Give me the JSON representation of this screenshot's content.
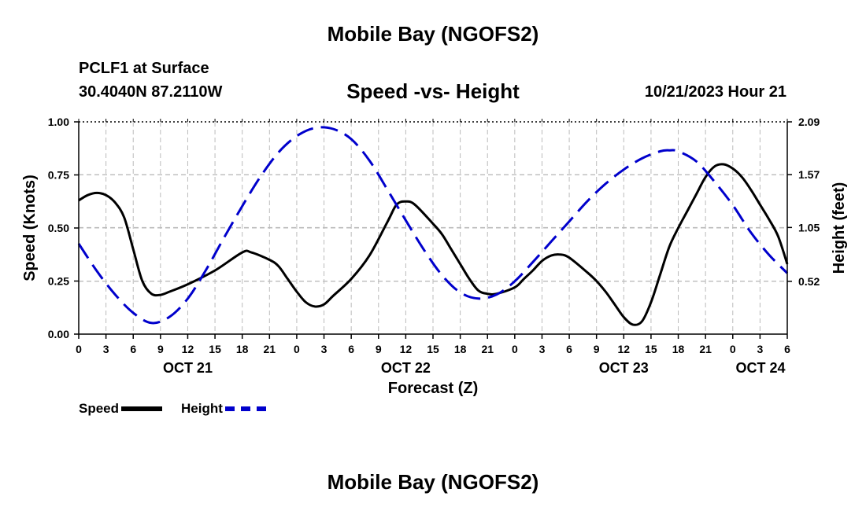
{
  "header": {
    "title": "Mobile Bay (NGOFS2)",
    "station": "PCLF1 at Surface",
    "coords": "30.4040N  87.2110W",
    "subtitle": "Speed -vs- Height",
    "timestamp": "10/21/2023 Hour 21"
  },
  "footer": {
    "title": "Mobile Bay (NGOFS2)"
  },
  "legend": {
    "speed_label": "Speed",
    "height_label": "Height"
  },
  "colors": {
    "speed": "#000000",
    "height": "#0000cc",
    "grid": "#bbbbbb"
  },
  "chart_data": {
    "type": "line",
    "title": "Speed -vs- Height",
    "xlabel": "Forecast (Z)",
    "ylabel": "Speed (Knots)",
    "y2label": "Height (feet)",
    "x_range_hours": [
      0,
      78
    ],
    "x_tick_labels": [
      "0",
      "3",
      "6",
      "9",
      "12",
      "15",
      "18",
      "21",
      "0",
      "3",
      "6",
      "9",
      "12",
      "15",
      "18",
      "21",
      "0",
      "3",
      "6",
      "9",
      "12",
      "15",
      "18",
      "21",
      "0",
      "3",
      "6"
    ],
    "date_labels": [
      {
        "text": "OCT 21",
        "hour": 12
      },
      {
        "text": "OCT 22",
        "hour": 36
      },
      {
        "text": "OCT 23",
        "hour": 60
      },
      {
        "text": "OCT 24",
        "hour": 78
      }
    ],
    "ylim": [
      0,
      1.0
    ],
    "y_ticks": [
      {
        "label": "0.00",
        "value": 0
      },
      {
        "label": "0.25",
        "value": 0.25
      },
      {
        "label": "0.50",
        "value": 0.5
      },
      {
        "label": "0.75",
        "value": 0.75
      },
      {
        "label": "1.00",
        "value": 1.0
      }
    ],
    "y2lim": [
      0,
      2.09
    ],
    "y2_ticks": [
      {
        "label": "0.52",
        "value": 0.52
      },
      {
        "label": "1.05",
        "value": 1.05
      },
      {
        "label": "1.57",
        "value": 1.57
      },
      {
        "label": "2.09",
        "value": 2.09
      }
    ],
    "series": [
      {
        "name": "Speed",
        "axis": "left",
        "style": "solid",
        "points": [
          [
            0,
            0.63
          ],
          [
            1,
            0.655
          ],
          [
            2,
            0.665
          ],
          [
            3,
            0.655
          ],
          [
            4,
            0.62
          ],
          [
            5,
            0.55
          ],
          [
            6,
            0.4
          ],
          [
            7,
            0.25
          ],
          [
            8,
            0.19
          ],
          [
            9,
            0.185
          ],
          [
            10,
            0.2
          ],
          [
            12,
            0.235
          ],
          [
            15,
            0.3
          ],
          [
            18,
            0.385
          ],
          [
            19,
            0.385
          ],
          [
            21,
            0.35
          ],
          [
            22,
            0.32
          ],
          [
            23,
            0.26
          ],
          [
            24,
            0.2
          ],
          [
            25,
            0.15
          ],
          [
            26,
            0.13
          ],
          [
            27,
            0.14
          ],
          [
            28,
            0.18
          ],
          [
            30,
            0.26
          ],
          [
            32,
            0.37
          ],
          [
            34,
            0.53
          ],
          [
            35,
            0.61
          ],
          [
            36,
            0.625
          ],
          [
            37,
            0.61
          ],
          [
            39,
            0.52
          ],
          [
            40,
            0.47
          ],
          [
            41,
            0.4
          ],
          [
            42,
            0.33
          ],
          [
            43,
            0.26
          ],
          [
            44,
            0.205
          ],
          [
            45,
            0.19
          ],
          [
            46,
            0.19
          ],
          [
            48,
            0.22
          ],
          [
            49,
            0.26
          ],
          [
            50,
            0.3
          ],
          [
            51,
            0.345
          ],
          [
            52,
            0.37
          ],
          [
            53,
            0.375
          ],
          [
            54,
            0.36
          ],
          [
            56,
            0.29
          ],
          [
            57,
            0.25
          ],
          [
            58,
            0.2
          ],
          [
            59,
            0.14
          ],
          [
            60,
            0.08
          ],
          [
            61,
            0.045
          ],
          [
            62,
            0.06
          ],
          [
            63,
            0.15
          ],
          [
            64,
            0.28
          ],
          [
            65,
            0.41
          ],
          [
            66,
            0.5
          ],
          [
            67,
            0.58
          ],
          [
            68,
            0.66
          ],
          [
            69,
            0.74
          ],
          [
            70,
            0.79
          ],
          [
            71,
            0.8
          ],
          [
            72,
            0.78
          ],
          [
            73,
            0.74
          ],
          [
            74,
            0.68
          ],
          [
            75,
            0.61
          ],
          [
            76,
            0.54
          ],
          [
            77,
            0.46
          ],
          [
            78,
            0.33
          ]
        ]
      },
      {
        "name": "Height",
        "axis": "right",
        "style": "dashed",
        "points": [
          [
            0,
            0.89
          ],
          [
            2,
            0.62
          ],
          [
            4,
            0.39
          ],
          [
            6,
            0.21
          ],
          [
            8,
            0.11
          ],
          [
            10,
            0.17
          ],
          [
            12,
            0.35
          ],
          [
            14,
            0.63
          ],
          [
            16,
            0.95
          ],
          [
            18,
            1.26
          ],
          [
            20,
            1.55
          ],
          [
            22,
            1.79
          ],
          [
            24,
            1.95
          ],
          [
            26,
            2.03
          ],
          [
            28,
            2.02
          ],
          [
            30,
            1.92
          ],
          [
            32,
            1.71
          ],
          [
            34,
            1.42
          ],
          [
            36,
            1.12
          ],
          [
            38,
            0.83
          ],
          [
            40,
            0.58
          ],
          [
            42,
            0.41
          ],
          [
            44,
            0.35
          ],
          [
            46,
            0.39
          ],
          [
            48,
            0.52
          ],
          [
            50,
            0.71
          ],
          [
            52,
            0.91
          ],
          [
            54,
            1.11
          ],
          [
            56,
            1.31
          ],
          [
            58,
            1.48
          ],
          [
            60,
            1.62
          ],
          [
            62,
            1.73
          ],
          [
            64,
            1.8
          ],
          [
            65,
            1.81
          ],
          [
            66,
            1.8
          ],
          [
            68,
            1.7
          ],
          [
            70,
            1.5
          ],
          [
            72,
            1.27
          ],
          [
            74,
            1.0
          ],
          [
            76,
            0.78
          ],
          [
            78,
            0.6
          ]
        ]
      }
    ]
  }
}
